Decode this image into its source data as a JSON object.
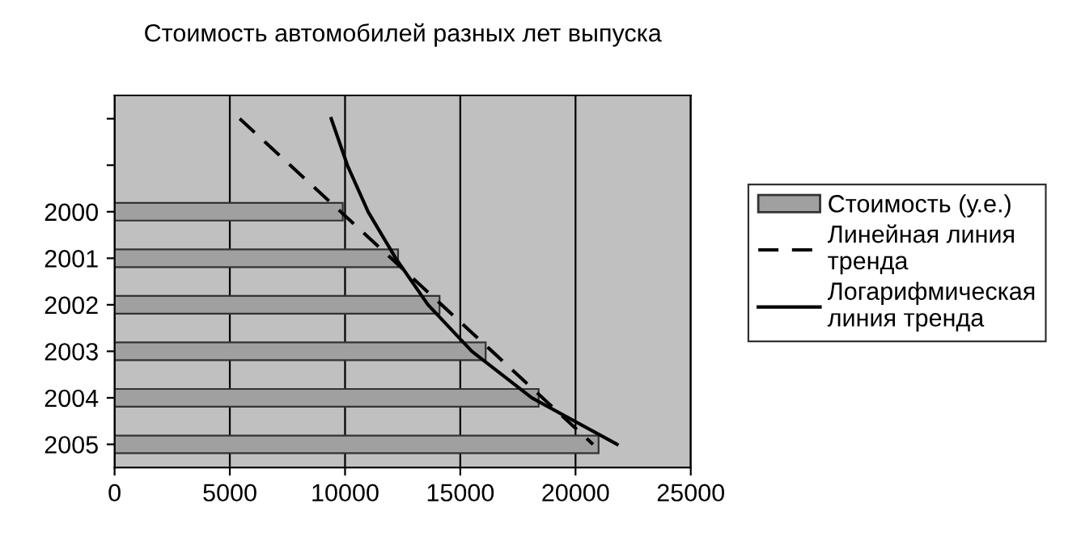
{
  "chart_data": {
    "type": "bar",
    "orientation": "horizontal",
    "title": "Стоимость автомобилей разных лет выпуска",
    "categories": [
      null,
      null,
      "2000",
      "2001",
      "2002",
      "2003",
      "2004",
      "2005"
    ],
    "series": [
      {
        "name": "Стоимость (у.е.)",
        "color": "#a0a0a0",
        "values": [
          null,
          null,
          9900,
          12300,
          14100,
          16100,
          18400,
          21000
        ]
      },
      {
        "name": "Линейная линия тренда",
        "type": "line",
        "color": "#000000",
        "line_style": "dashed",
        "values": [
          5430,
          7620,
          9810,
          12000,
          14190,
          16380,
          18570,
          20760
        ]
      },
      {
        "name": "Логарифмическая линия тренда",
        "type": "line",
        "color": "#000000",
        "line_style": "solid",
        "values": [
          9400,
          10100,
          11000,
          12200,
          13600,
          15500,
          18100,
          21800
        ]
      }
    ],
    "xlim": [
      0,
      25000
    ],
    "xticks": [
      0,
      5000,
      10000,
      15000,
      20000,
      25000
    ],
    "grid": "x",
    "legend": "right",
    "marker": "none"
  }
}
